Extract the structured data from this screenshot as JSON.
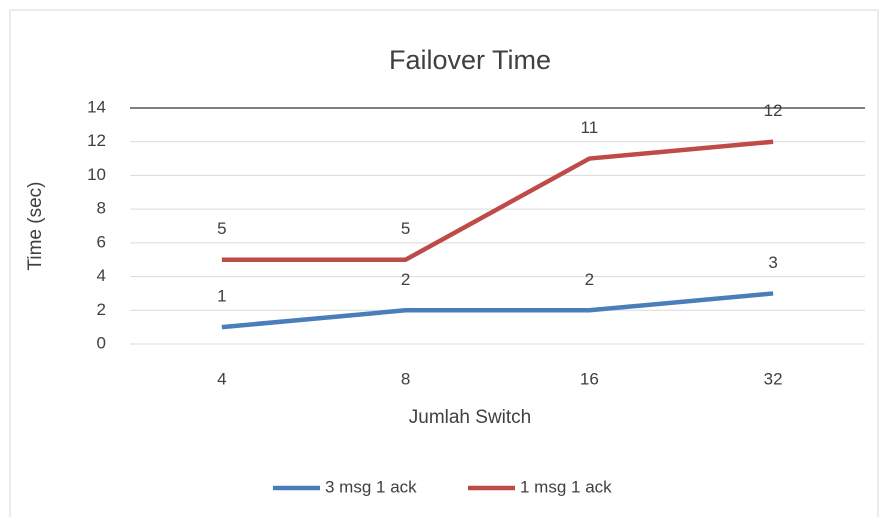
{
  "chart_data": {
    "type": "line",
    "title": "Failover Time",
    "x_label": "Jumlah Switch",
    "y_label": "Time (sec)",
    "categories": [
      "4",
      "8",
      "16",
      "32"
    ],
    "series": [
      {
        "name": "3 msg 1 ack",
        "color": "#4a7ebb",
        "values": [
          1,
          2,
          2,
          3
        ]
      },
      {
        "name": "1 msg 1 ack",
        "color": "#be4b48",
        "values": [
          5,
          5,
          11,
          12
        ]
      }
    ],
    "ylim": [
      0,
      14
    ],
    "yticks": [
      0,
      2,
      4,
      6,
      8,
      10,
      12,
      14
    ],
    "grid": true,
    "legend": "bottom",
    "data_labels": true
  }
}
